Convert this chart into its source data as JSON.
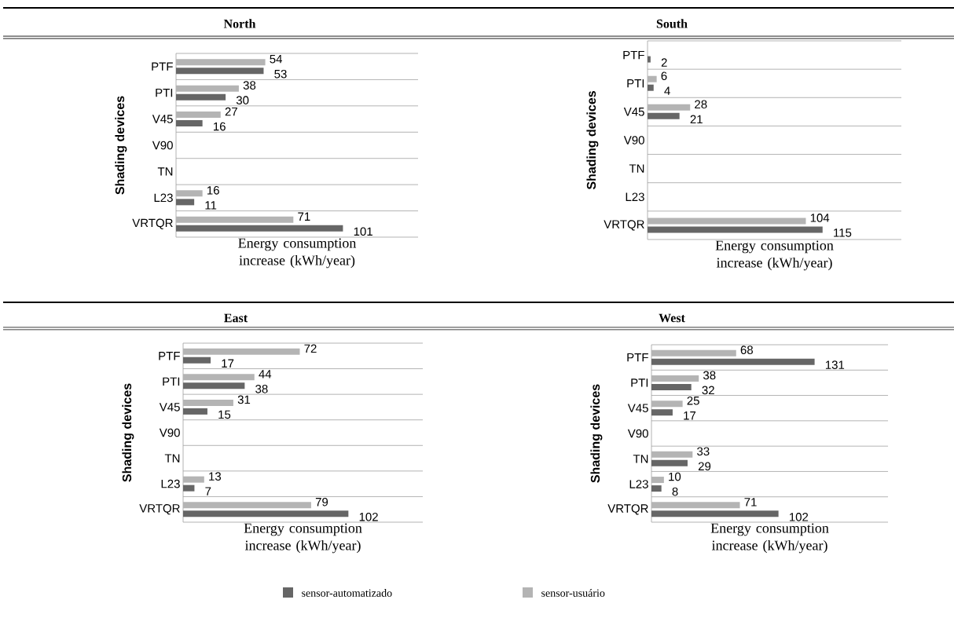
{
  "chart_data": [
    {
      "type": "bar",
      "orientation": "horizontal",
      "title": "North",
      "ylabel": "Shading devices",
      "xlabel": "Energy consumption increase (kWh/year)",
      "categories": [
        "PTF",
        "PTI",
        "V45",
        "V90",
        "TN",
        "L23",
        "VRTQR"
      ],
      "data_labels": true,
      "grid": "y",
      "series": [
        {
          "color": "#b4b4b4",
          "values": [
            54,
            38,
            27,
            null,
            null,
            16,
            71
          ]
        },
        {
          "color": "#666666",
          "values": [
            53,
            30,
            16,
            null,
            null,
            11,
            101
          ]
        }
      ]
    },
    {
      "type": "bar",
      "orientation": "horizontal",
      "title": "South",
      "ylabel": "Shading devices",
      "xlabel": "Energy consumption increase (kWh/year)",
      "categories": [
        "PTF",
        "PTI",
        "V45",
        "V90",
        "TN",
        "L23",
        "VRTQR"
      ],
      "data_labels": true,
      "grid": "y",
      "series": [
        {
          "color": "#b4b4b4",
          "values": [
            null,
            6,
            28,
            null,
            null,
            null,
            104
          ]
        },
        {
          "color": "#666666",
          "values": [
            2,
            4,
            21,
            null,
            null,
            null,
            115
          ]
        }
      ]
    },
    {
      "type": "bar",
      "orientation": "horizontal",
      "title": "East",
      "ylabel": "Shading devices",
      "xlabel": "Energy consumption increase (kWh/year)",
      "categories": [
        "PTF",
        "PTI",
        "V45",
        "V90",
        "TN",
        "L23",
        "VRTQR"
      ],
      "data_labels": true,
      "grid": "y",
      "series": [
        {
          "color": "#b4b4b4",
          "values": [
            72,
            44,
            31,
            null,
            null,
            13,
            79
          ]
        },
        {
          "color": "#666666",
          "values": [
            17,
            38,
            15,
            null,
            null,
            7,
            102
          ]
        }
      ]
    },
    {
      "type": "bar",
      "orientation": "horizontal",
      "title": "West",
      "ylabel": "Shading devices",
      "xlabel": "Energy consumption increase (kWh/year)",
      "categories": [
        "PTF",
        "PTI",
        "V45",
        "V90",
        "TN",
        "L23",
        "VRTQR"
      ],
      "data_labels": true,
      "grid": "y",
      "legend": "bottom",
      "series": [
        {
          "name": "sensor-usuário",
          "color": "#b4b4b4",
          "values": [
            68,
            38,
            25,
            null,
            33,
            10,
            71
          ]
        },
        {
          "name": "sensor-automatizado",
          "color": "#666666",
          "values": [
            131,
            32,
            17,
            null,
            29,
            8,
            102
          ]
        }
      ]
    }
  ]
}
